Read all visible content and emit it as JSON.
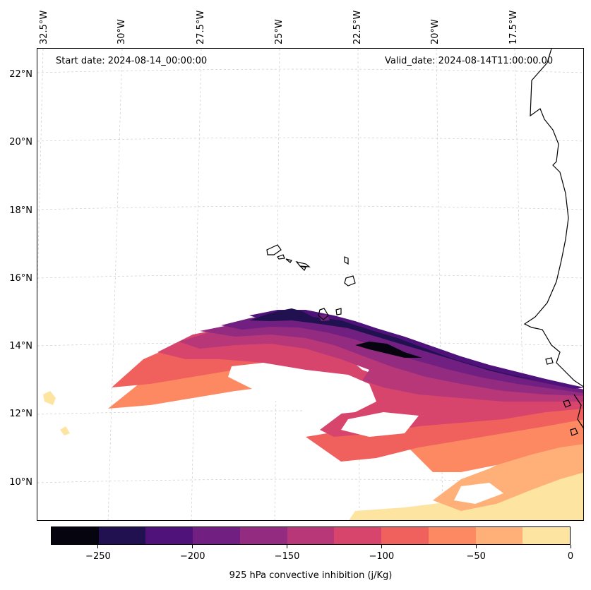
{
  "map": {
    "start_date_label": "Start date: 2024-08-14_00:00:00",
    "valid_date_label": "Valid_date: 2024-08-14T11:00:00.00",
    "longitude_labels": [
      "32.5°W",
      "30°W",
      "27.5°W",
      "25°W",
      "22.5°W",
      "20°W",
      "17.5°W"
    ],
    "latitude_labels": [
      "22°N",
      "20°N",
      "18°N",
      "16°N",
      "14°N",
      "12°N",
      "10°N"
    ],
    "coastline_color": "#000000",
    "gridline_color": "#cccccc"
  },
  "colorbar": {
    "title": "925 hPa convective inhibition (j/Kg)",
    "min": -275,
    "max": 0,
    "levels": [
      -275,
      -250,
      -225,
      -200,
      -175,
      -150,
      -125,
      -100,
      -75,
      -50,
      -25,
      0
    ],
    "tick_labels": [
      "−250",
      "−200",
      "−150",
      "−100",
      "−50",
      "0"
    ],
    "tick_values": [
      -250,
      -200,
      -150,
      -100,
      -50,
      0
    ],
    "colors": [
      "#05040f",
      "#221150",
      "#4f127b",
      "#711f81",
      "#932b80",
      "#b73779",
      "#d8456c",
      "#f0605d",
      "#fc8961",
      "#feb078",
      "#fde5a1"
    ]
  }
}
